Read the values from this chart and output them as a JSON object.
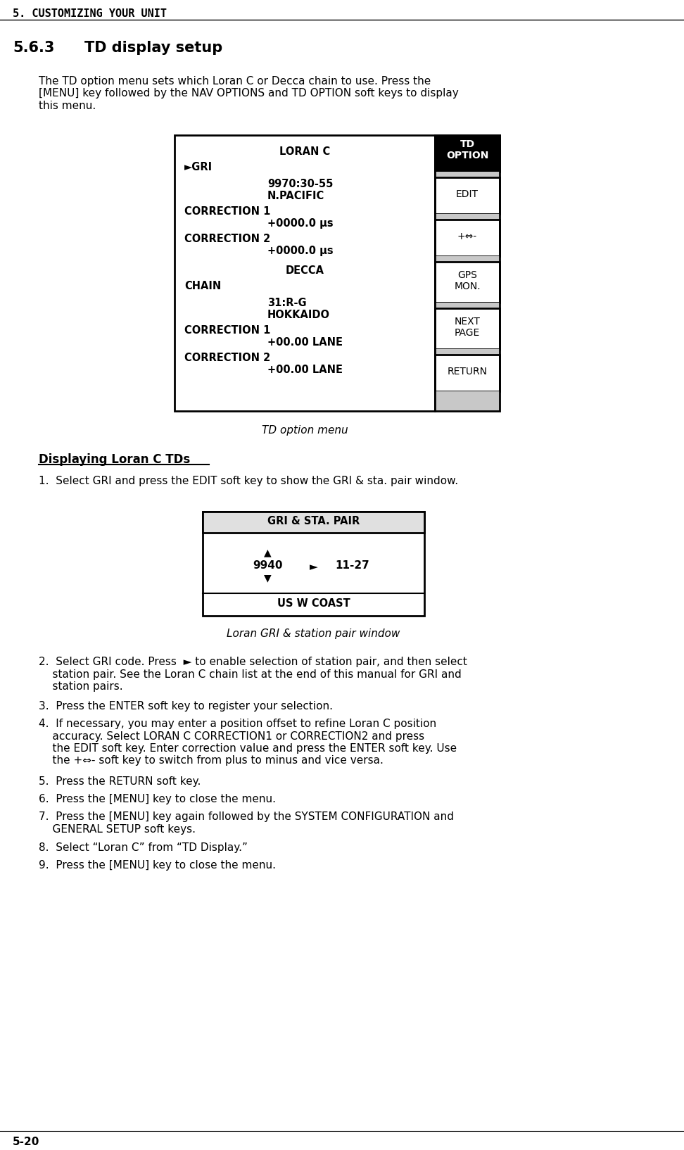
{
  "page_header": "5. CUSTOMIZING YOUR UNIT",
  "section_num": "5.6.3",
  "section_title": "TD display setup",
  "intro_text": "The TD option menu sets which Loran C or Decca chain to use. Press the\n[MENU] key followed by the NAV OPTIONS and TD OPTION soft keys to display\nthis menu.",
  "td_menu_caption": "TD option menu",
  "displaying_heading": "Displaying Loran C TDs",
  "step1_text": "1.  Select GRI and press the EDIT soft key to show the GRI & sta. pair window.",
  "gri_menu_header": "GRI & STA. PAIR",
  "gri_menu_footer": "US W COAST",
  "gri_caption": "Loran GRI & station pair window",
  "steps_text": [
    "2.  Select GRI code. Press  ► to enable selection of station pair, and then select\n    station pair. See the Loran C chain list at the end of this manual for GRI and\n    station pairs.",
    "3.  Press the ENTER soft key to register your selection.",
    "4.  If necessary, you may enter a position offset to refine Loran C position\n    accuracy. Select LORAN C CORRECTION1 or CORRECTION2 and press\n    the EDIT soft key. Enter correction value and press the ENTER soft key. Use\n    the +⇔- soft key to switch from plus to minus and vice versa.",
    "5.  Press the RETURN soft key.",
    "6.  Press the [MENU] key to close the menu.",
    "7.  Press the [MENU] key again followed by the SYSTEM CONFIGURATION and\n    GENERAL SETUP soft keys.",
    "8.  Select “Loran C” from “TD Display.”",
    "9.  Press the [MENU] key to close the menu."
  ],
  "page_footer": "5-20",
  "bg_color": "#ffffff",
  "text_color": "#000000"
}
